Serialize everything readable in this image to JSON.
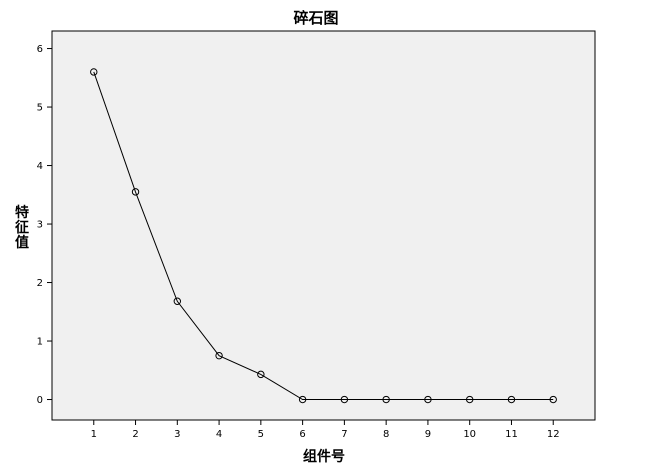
{
  "chart_data": {
    "type": "line",
    "title": "碎石图",
    "xlabel": "组件号",
    "ylabel": "特征值",
    "ylabel_chars": [
      "特",
      "征",
      "值"
    ],
    "x": [
      1,
      2,
      3,
      4,
      5,
      6,
      7,
      8,
      9,
      10,
      11,
      12
    ],
    "y": [
      5.6,
      3.55,
      1.68,
      0.75,
      0.43,
      0.0,
      0.0,
      0.0,
      0.0,
      0.0,
      0.0,
      0.0
    ],
    "xlim": [
      0,
      13
    ],
    "ylim": [
      -0.35,
      6.3
    ],
    "yticks": [
      0,
      1,
      2,
      3,
      4,
      5,
      6
    ],
    "xticks": [
      1,
      2,
      3,
      4,
      5,
      6,
      7,
      8,
      9,
      10,
      11,
      12
    ],
    "grid": false,
    "marker": "open-circle",
    "colors": {
      "plot_bg": "#f0f0f0",
      "line": "#000000",
      "frame": "#000000"
    }
  }
}
